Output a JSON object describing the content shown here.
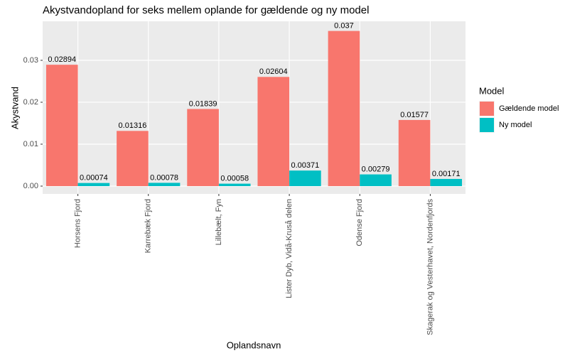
{
  "chart_data": {
    "type": "bar",
    "title": "Akystvandopland for seks mellem oplande for gældende og ny model",
    "x_label": "Oplandsnavn",
    "y_label": "Akystvand",
    "legend_title": "Model",
    "categories": [
      "Horsens Fjord",
      "Karrebæk Fjord",
      "Lillebælt, Fyn",
      "Lister Dyb, Vidå-Kruså delen",
      "Odense Fjord",
      "Skagerak og Vesterhavet, Nordenfjords"
    ],
    "series": [
      {
        "name": "Gældende model",
        "color": "#f8766d",
        "values": [
          0.02894,
          0.01316,
          0.01839,
          0.02604,
          0.037,
          0.01577
        ]
      },
      {
        "name": "Ny model",
        "color": "#00bfc4",
        "values": [
          0.00074,
          0.00078,
          0.00058,
          0.00371,
          0.00279,
          0.00171
        ]
      }
    ],
    "ylim": [
      -0.00186,
      0.0393
    ],
    "yticks": [
      {
        "value": 0,
        "label": "0.00"
      },
      {
        "value": 0.01,
        "label": "0.01"
      },
      {
        "value": 0.02,
        "label": "0.02"
      },
      {
        "value": 0.03,
        "label": "0.03"
      }
    ],
    "grid": true,
    "legend_position": "right"
  }
}
